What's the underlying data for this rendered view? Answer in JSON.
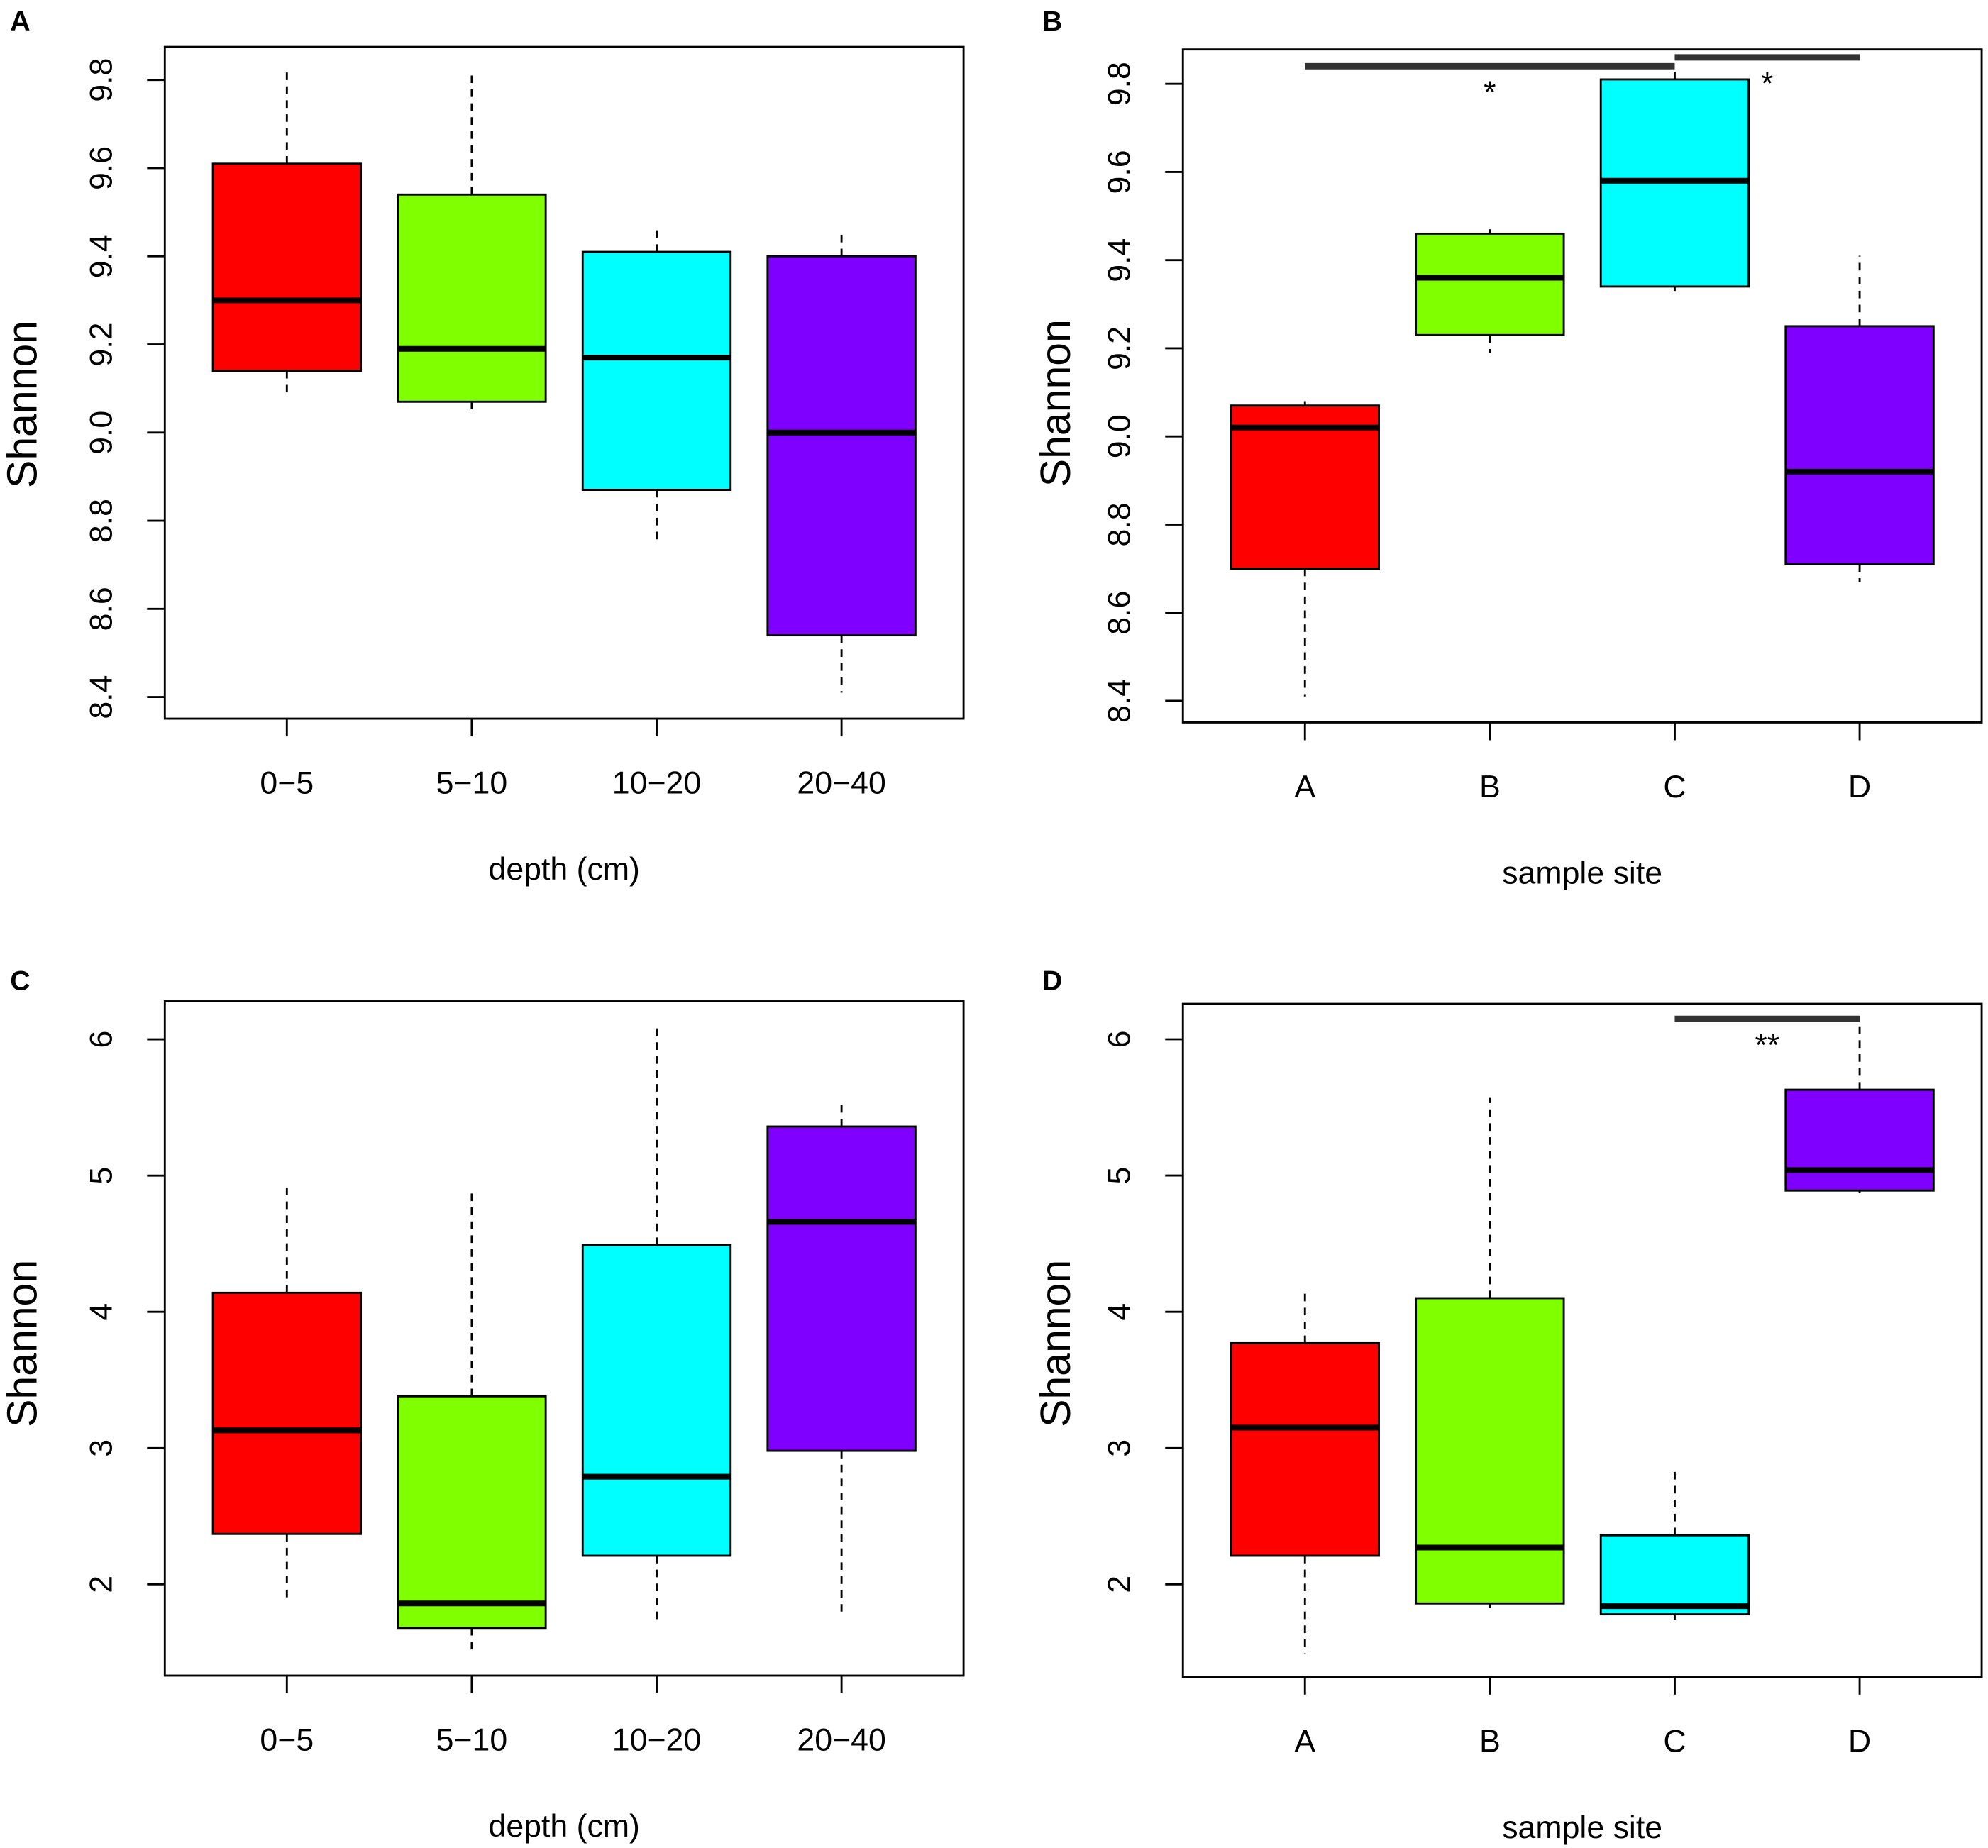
{
  "chart_data": [
    {
      "panel_label": "A",
      "type": "boxplot",
      "xlabel": "depth (cm)",
      "ylabel": "Shannon",
      "categories": [
        "0−5",
        "5−10",
        "10−20",
        "20−40"
      ],
      "ylim": [
        8.351,
        9.875
      ],
      "ytick_labels": [
        "8.4",
        "8.6",
        "8.8",
        "9.0",
        "9.2",
        "9.4",
        "9.6",
        "9.8"
      ],
      "boxes": [
        {
          "color": "#FF0000",
          "min": 9.08,
          "q1": 9.14,
          "median": 9.3,
          "q3": 9.61,
          "max": 9.82
        },
        {
          "color": "#80FF00",
          "min": 9.04,
          "q1": 9.07,
          "median": 9.19,
          "q3": 9.54,
          "max": 9.81
        },
        {
          "color": "#00FFFF",
          "min": 8.75,
          "q1": 8.87,
          "median": 9.17,
          "q3": 9.41,
          "max": 9.47
        },
        {
          "color": "#8000FF",
          "min": 8.41,
          "q1": 8.54,
          "median": 9.0,
          "q3": 9.4,
          "max": 9.45
        }
      ],
      "significance": []
    },
    {
      "panel_label": "B",
      "type": "boxplot",
      "xlabel": "sample site",
      "ylabel": "Shannon",
      "categories": [
        "A",
        "B",
        "C",
        "D"
      ],
      "ylim": [
        8.351,
        9.878
      ],
      "ytick_labels": [
        "8.4",
        "8.6",
        "8.8",
        "9.0",
        "9.2",
        "9.4",
        "9.6",
        "9.8"
      ],
      "boxes": [
        {
          "color": "#FF0000",
          "min": 8.41,
          "q1": 8.7,
          "median": 9.02,
          "q3": 9.07,
          "max": 9.08
        },
        {
          "color": "#80FF00",
          "min": 9.19,
          "q1": 9.23,
          "median": 9.36,
          "q3": 9.46,
          "max": 9.47
        },
        {
          "color": "#00FFFF",
          "min": 9.33,
          "q1": 9.34,
          "median": 9.58,
          "q3": 9.81,
          "max": 9.83
        },
        {
          "color": "#8000FF",
          "min": 8.67,
          "q1": 8.71,
          "median": 8.92,
          "q3": 9.25,
          "max": 9.41
        }
      ],
      "significance": [
        {
          "from": 1,
          "to": 3,
          "y": 9.84,
          "label": "*"
        },
        {
          "from": 3,
          "to": 4,
          "y": 9.86,
          "label": "*"
        }
      ]
    },
    {
      "panel_label": "C",
      "type": "boxplot",
      "xlabel": "depth (cm)",
      "ylabel": "Shannon",
      "categories": [
        "0−5",
        "5−10",
        "10−20",
        "20−40"
      ],
      "ylim": [
        1.33,
        6.279
      ],
      "ytick_labels": [
        "2",
        "3",
        "4",
        "5",
        "6"
      ],
      "boxes": [
        {
          "color": "#FF0000",
          "min": 1.86,
          "q1": 2.37,
          "median": 3.13,
          "q3": 4.14,
          "max": 4.91
        },
        {
          "color": "#80FF00",
          "min": 1.49,
          "q1": 1.68,
          "median": 1.86,
          "q3": 3.38,
          "max": 4.9
        },
        {
          "color": "#00FFFF",
          "min": 1.72,
          "q1": 2.21,
          "median": 2.79,
          "q3": 4.49,
          "max": 6.09
        },
        {
          "color": "#8000FF",
          "min": 1.8,
          "q1": 2.98,
          "median": 4.66,
          "q3": 5.36,
          "max": 5.55
        }
      ],
      "significance": []
    },
    {
      "panel_label": "D",
      "type": "boxplot",
      "xlabel": "sample site",
      "ylabel": "Shannon",
      "categories": [
        "A",
        "B",
        "C",
        "D"
      ],
      "ylim": [
        1.321,
        6.26
      ],
      "ytick_labels": [
        "2",
        "3",
        "4",
        "5",
        "6"
      ],
      "boxes": [
        {
          "color": "#FF0000",
          "min": 1.49,
          "q1": 2.21,
          "median": 3.15,
          "q3": 3.77,
          "max": 4.17
        },
        {
          "color": "#80FF00",
          "min": 1.83,
          "q1": 1.86,
          "median": 2.27,
          "q3": 4.1,
          "max": 5.57
        },
        {
          "color": "#00FFFF",
          "min": 1.74,
          "q1": 1.78,
          "median": 1.84,
          "q3": 2.36,
          "max": 2.87
        },
        {
          "color": "#8000FF",
          "min": 4.87,
          "q1": 4.89,
          "median": 5.04,
          "q3": 5.63,
          "max": 6.14
        }
      ],
      "significance": [
        {
          "from": 3,
          "to": 4,
          "y": 6.15,
          "label": "**"
        }
      ]
    }
  ]
}
